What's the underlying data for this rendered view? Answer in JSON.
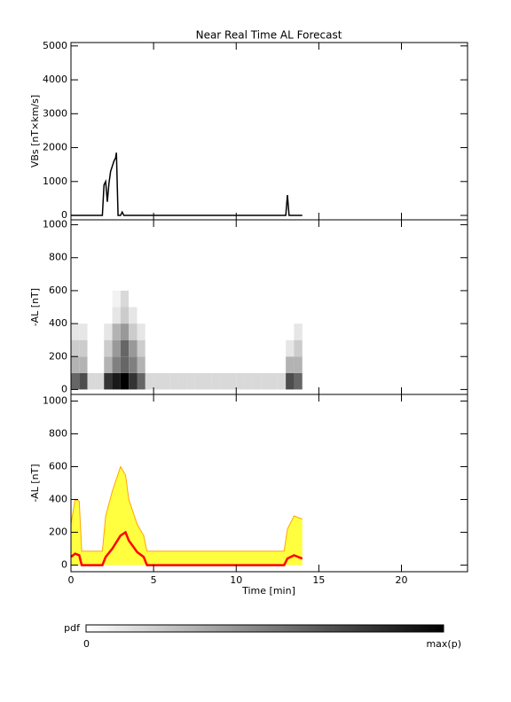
{
  "chart_data": [
    {
      "type": "line",
      "title": "Near Real Time AL Forecast",
      "ylabel": "VBs [nT×km/s]",
      "xlim": [
        0,
        24
      ],
      "xticks": [
        0,
        5,
        10,
        15,
        20
      ],
      "ylim": [
        -130,
        5100
      ],
      "yticks": [
        0,
        1000,
        2000,
        3000,
        4000,
        5000
      ],
      "x": [
        0,
        1.9,
        2.0,
        2.1,
        2.2,
        2.3,
        2.4,
        2.5,
        2.6,
        2.7,
        2.75,
        2.85,
        3.0,
        3.1,
        3.2,
        13.0,
        13.1,
        13.2,
        14.0
      ],
      "series": [
        {
          "color": "#000000",
          "values": [
            0,
            0,
            900,
            1000,
            400,
            950,
            1300,
            1450,
            1600,
            1700,
            1850,
            0,
            0,
            100,
            0,
            0,
            600,
            0,
            0
          ]
        }
      ]
    },
    {
      "type": "heatmap",
      "ylabel": "-AL [nT]",
      "xlim": [
        0,
        24
      ],
      "xticks": [
        0,
        5,
        10,
        15,
        20
      ],
      "ylim": [
        -30,
        1030
      ],
      "yticks": [
        0,
        200,
        400,
        600,
        800,
        1000
      ],
      "xbins": [
        0,
        0.5,
        1,
        1.5,
        2,
        2.5,
        3,
        3.5,
        4,
        4.5,
        5,
        5.5,
        6,
        6.5,
        7,
        7.5,
        8,
        8.5,
        9,
        9.5,
        10,
        10.5,
        11,
        11.5,
        12,
        12.5,
        13,
        13.5,
        14
      ],
      "ybins": [
        0,
        100,
        200,
        300,
        400,
        500,
        600
      ],
      "z": [
        [
          0.6,
          0.7,
          0.15,
          0.15,
          0.8,
          0.9,
          1,
          0.8,
          0.6,
          0.15,
          0.15,
          0.15,
          0.15,
          0.15,
          0.15,
          0.15,
          0.15,
          0.15,
          0.15,
          0.15,
          0.15,
          0.15,
          0.15,
          0.15,
          0.15,
          0.15,
          0.7,
          0.6
        ],
        [
          0.3,
          0.3,
          0,
          0,
          0.3,
          0.5,
          0.6,
          0.5,
          0.3,
          0,
          0,
          0,
          0,
          0,
          0,
          0,
          0,
          0,
          0,
          0,
          0,
          0,
          0,
          0,
          0,
          0,
          0.3,
          0.3
        ],
        [
          0.2,
          0.2,
          0,
          0,
          0.2,
          0.4,
          0.6,
          0.4,
          0.2,
          0,
          0,
          0,
          0,
          0,
          0,
          0,
          0,
          0,
          0,
          0,
          0,
          0,
          0,
          0,
          0,
          0,
          0.1,
          0.2
        ],
        [
          0.1,
          0.1,
          0,
          0,
          0.1,
          0.3,
          0.4,
          0.2,
          0.1,
          0,
          0,
          0,
          0,
          0,
          0,
          0,
          0,
          0,
          0,
          0,
          0,
          0,
          0,
          0,
          0,
          0,
          0,
          0.1
        ],
        [
          0,
          0,
          0,
          0,
          0,
          0.1,
          0.2,
          0.1,
          0,
          0,
          0,
          0,
          0,
          0,
          0,
          0,
          0,
          0,
          0,
          0,
          0,
          0,
          0,
          0,
          0,
          0,
          0,
          0
        ],
        [
          0,
          0,
          0,
          0,
          0,
          0.05,
          0.15,
          0,
          0,
          0,
          0,
          0,
          0,
          0,
          0,
          0,
          0,
          0,
          0,
          0,
          0,
          0,
          0,
          0,
          0,
          0,
          0,
          0
        ]
      ]
    },
    {
      "type": "area",
      "ylabel": "-AL [nT]",
      "xlabel": "Time [min]",
      "xlim": [
        0,
        24
      ],
      "xticks": [
        0,
        5,
        10,
        15,
        20
      ],
      "ylim": [
        -40,
        1040
      ],
      "yticks": [
        0,
        200,
        400,
        600,
        800,
        1000
      ],
      "x": [
        0,
        0.25,
        0.5,
        0.65,
        1,
        1.9,
        2.1,
        2.5,
        3,
        3.3,
        3.5,
        4,
        4.4,
        4.6,
        5,
        10,
        12.9,
        13.1,
        13.5,
        14
      ],
      "series": [
        {
          "color": "#ffa500",
          "fill": "#ffff40",
          "values": [
            250,
            400,
            390,
            85,
            85,
            85,
            300,
            450,
            600,
            550,
            400,
            250,
            180,
            85,
            85,
            85,
            85,
            220,
            300,
            280
          ]
        },
        {
          "color": "#ff0000",
          "values": [
            50,
            70,
            60,
            0,
            0,
            0,
            50,
            100,
            180,
            200,
            150,
            80,
            50,
            0,
            0,
            0,
            0,
            40,
            60,
            40
          ]
        }
      ]
    }
  ],
  "colorbar": {
    "label": "pdf",
    "min_label": "0",
    "max_label": "max(p)"
  }
}
